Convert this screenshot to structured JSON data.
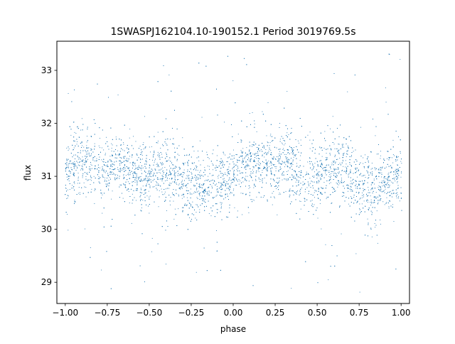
{
  "chart_data": {
    "type": "scatter",
    "title": "1SWASPJ162104.10-190152.1 Period 3019769.5s",
    "xlabel": "phase",
    "ylabel": "flux",
    "xlim": [
      -1.05,
      1.05
    ],
    "ylim": [
      28.6,
      33.55
    ],
    "x_ticks": [
      -1.0,
      -0.75,
      -0.5,
      -0.25,
      0.0,
      0.25,
      0.5,
      0.75,
      1.0
    ],
    "x_tick_labels": [
      "−1.00",
      "−0.75",
      "−0.50",
      "−0.25",
      "0.00",
      "0.25",
      "0.50",
      "0.75",
      "1.00"
    ],
    "y_ticks": [
      29,
      30,
      31,
      32,
      33
    ],
    "y_tick_labels": [
      "29",
      "30",
      "31",
      "32",
      "33"
    ],
    "grid": false,
    "legend": "none",
    "marker_color": "#1f77b4",
    "series": [
      {
        "phase_range": [
          -1.0,
          1.0
        ],
        "period_in_phase": 1.0,
        "flux_profile_phase": [
          0.0,
          0.05,
          0.1,
          0.15,
          0.2,
          0.25,
          0.3,
          0.35,
          0.4,
          0.45,
          0.5,
          0.55,
          0.6,
          0.65,
          0.7,
          0.75,
          0.8,
          0.85,
          0.9,
          0.95,
          1.0
        ],
        "flux_profile_median": [
          31.0,
          31.15,
          31.3,
          31.25,
          31.2,
          31.1,
          31.3,
          31.2,
          31.05,
          31.0,
          31.05,
          31.1,
          31.15,
          31.1,
          30.95,
          30.85,
          30.75,
          30.8,
          30.85,
          30.95,
          31.0
        ],
        "flux_core_spread": [
          30.3,
          31.9
        ],
        "flux_outlier_range": [
          28.8,
          33.4
        ]
      }
    ]
  }
}
